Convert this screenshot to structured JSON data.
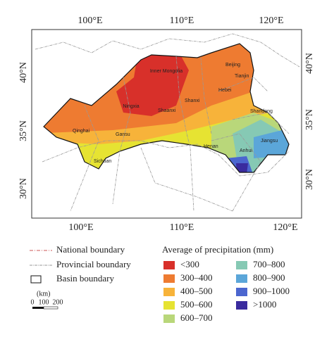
{
  "map": {
    "lon_labels_top": [
      "100°E",
      "110°E",
      "120°E"
    ],
    "lon_labels_bottom": [
      "100°E",
      "110°E",
      "120°E"
    ],
    "lat_labels_left": [
      "40°N",
      "35°N",
      "30°N"
    ],
    "lat_labels_right": [
      "40°N",
      "35°N",
      "30°N"
    ],
    "places": [
      "Inner Mongolia",
      "Beijing",
      "Tianjin",
      "Hebei",
      "Ningxia",
      "Shanxi",
      "Shaanxi",
      "Shandong",
      "Qinghai",
      "Gansu",
      "Henan",
      "Jiangsu",
      "Anhui",
      "Sichuan"
    ]
  },
  "legend": {
    "boundaries": [
      "National boundary",
      "Provincial boundary",
      "Basin boundary"
    ],
    "scale_unit": "(km)",
    "scale_labels": [
      "0",
      "100",
      "200"
    ],
    "title": "Average of precipitation (mm)",
    "classes": [
      {
        "label": "<300",
        "color": "#d8302a"
      },
      {
        "label": "300–400",
        "color": "#ee7b31"
      },
      {
        "label": "400–500",
        "color": "#f7b33a"
      },
      {
        "label": "500–600",
        "color": "#e6e332"
      },
      {
        "label": "600–700",
        "color": "#b9d77a"
      },
      {
        "label": "700–800",
        "color": "#86c9b4"
      },
      {
        "label": "800–900",
        "color": "#5ba6d9"
      },
      {
        "label": "900–1000",
        "color": "#4b66cf"
      },
      {
        "label": ">1000",
        "color": "#3a2b9e"
      }
    ]
  }
}
